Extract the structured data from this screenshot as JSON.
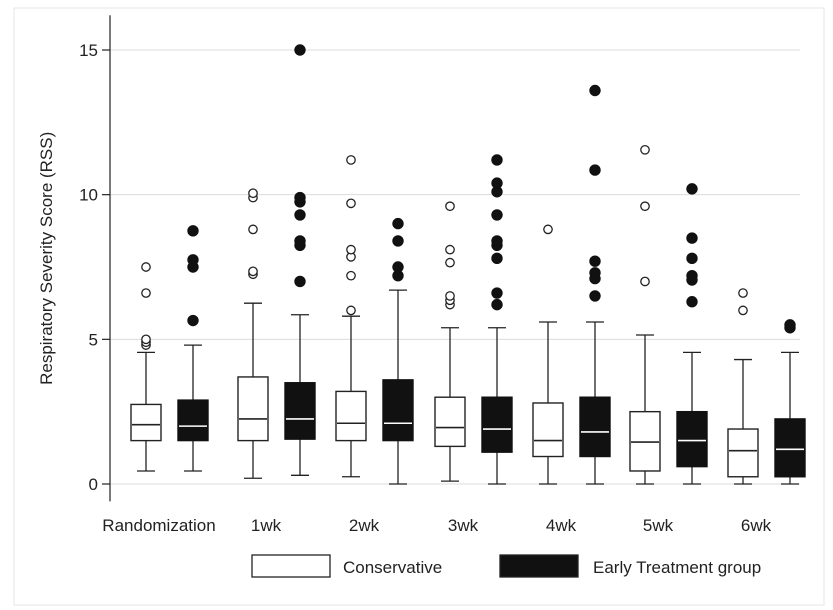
{
  "chart_data": {
    "type": "box",
    "ylabel": "Respiratory Severity Score (RSS)",
    "xlabel": "",
    "ylim": [
      -0.6,
      16.2
    ],
    "yticks": [
      0,
      5,
      10,
      15
    ],
    "grid": "y-major",
    "legend_placement": "bottom",
    "categories": [
      "Randomization",
      "1wk",
      "2wk",
      "3wk",
      "4wk",
      "5wk",
      "6wk"
    ],
    "series": [
      {
        "name": "Conservative",
        "fill": "#ffffff",
        "stroke": "#222222",
        "median_color": "#222222",
        "boxes": [
          {
            "min": 0.45,
            "q1": 1.5,
            "median": 2.05,
            "q3": 2.75,
            "max": 4.55,
            "outliers": [
              4.8,
              4.9,
              5.0,
              6.6,
              7.5
            ]
          },
          {
            "min": 0.2,
            "q1": 1.5,
            "median": 2.25,
            "q3": 3.7,
            "max": 6.25,
            "outliers": [
              7.25,
              7.35,
              8.8,
              9.9,
              10.05
            ]
          },
          {
            "min": 0.25,
            "q1": 1.5,
            "median": 2.1,
            "q3": 3.2,
            "max": 5.8,
            "outliers": [
              6.0,
              7.2,
              7.85,
              8.1,
              9.7,
              11.2
            ]
          },
          {
            "min": 0.1,
            "q1": 1.3,
            "median": 1.95,
            "q3": 3.0,
            "max": 5.4,
            "outliers": [
              6.2,
              6.35,
              6.5,
              7.65,
              8.1,
              9.6
            ]
          },
          {
            "min": 0.0,
            "q1": 0.95,
            "median": 1.5,
            "q3": 2.8,
            "max": 5.6,
            "outliers": [
              8.8
            ]
          },
          {
            "min": 0.0,
            "q1": 0.45,
            "median": 1.45,
            "q3": 2.5,
            "max": 5.15,
            "outliers": [
              7.0,
              9.6,
              11.55
            ]
          },
          {
            "min": 0.0,
            "q1": 0.25,
            "median": 1.15,
            "q3": 1.9,
            "max": 4.3,
            "outliers": [
              6.0,
              6.6
            ]
          }
        ]
      },
      {
        "name": "Early Treatment group",
        "fill": "#111111",
        "stroke": "#111111",
        "median_color": "#ffffff",
        "boxes": [
          {
            "min": 0.45,
            "q1": 1.5,
            "median": 2.0,
            "q3": 2.9,
            "max": 4.8,
            "outliers": [
              5.65,
              7.5,
              7.75,
              8.75
            ]
          },
          {
            "min": 0.3,
            "q1": 1.55,
            "median": 2.25,
            "q3": 3.5,
            "max": 5.85,
            "outliers": [
              7.0,
              8.25,
              8.4,
              9.3,
              9.75,
              9.9,
              15.0
            ]
          },
          {
            "min": 0.0,
            "q1": 1.5,
            "median": 2.1,
            "q3": 3.6,
            "max": 6.7,
            "outliers": [
              7.2,
              7.5,
              8.4,
              9.0
            ]
          },
          {
            "min": 0.0,
            "q1": 1.1,
            "median": 1.9,
            "q3": 3.0,
            "max": 5.4,
            "outliers": [
              6.2,
              6.6,
              7.8,
              8.25,
              8.4,
              9.3,
              10.1,
              10.4,
              11.2
            ]
          },
          {
            "min": 0.0,
            "q1": 0.95,
            "median": 1.8,
            "q3": 3.0,
            "max": 5.6,
            "outliers": [
              6.5,
              7.1,
              7.3,
              7.7,
              10.85,
              13.6
            ]
          },
          {
            "min": 0.0,
            "q1": 0.6,
            "median": 1.5,
            "q3": 2.5,
            "max": 4.55,
            "outliers": [
              6.3,
              7.05,
              7.2,
              7.8,
              8.5,
              10.2
            ]
          },
          {
            "min": 0.0,
            "q1": 0.25,
            "median": 1.2,
            "q3": 2.25,
            "max": 4.55,
            "outliers": [
              5.4,
              5.5
            ]
          }
        ]
      }
    ]
  }
}
